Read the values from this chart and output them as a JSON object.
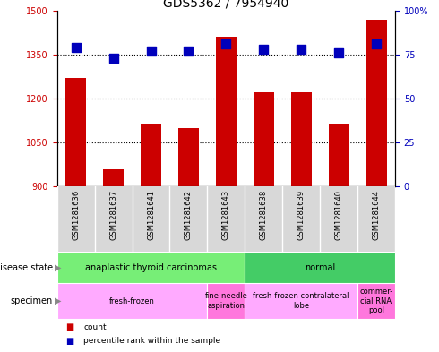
{
  "title": "GDS5362 / 7954940",
  "samples": [
    "GSM1281636",
    "GSM1281637",
    "GSM1281641",
    "GSM1281642",
    "GSM1281643",
    "GSM1281638",
    "GSM1281639",
    "GSM1281640",
    "GSM1281644"
  ],
  "counts": [
    1270,
    960,
    1115,
    1100,
    1410,
    1220,
    1220,
    1115,
    1470
  ],
  "percentiles": [
    79,
    73,
    77,
    77,
    81,
    78,
    78,
    76,
    81
  ],
  "ylim_left": [
    900,
    1500
  ],
  "ylim_right": [
    0,
    100
  ],
  "yticks_left": [
    900,
    1050,
    1200,
    1350,
    1500
  ],
  "yticks_right": [
    0,
    25,
    50,
    75,
    100
  ],
  "bar_color": "#cc0000",
  "dot_color": "#0000bb",
  "disease_state_groups": [
    {
      "label": "anaplastic thyroid carcinomas",
      "start": 0,
      "end": 5,
      "color": "#77ee77"
    },
    {
      "label": "normal",
      "start": 5,
      "end": 9,
      "color": "#44cc66"
    }
  ],
  "specimen_groups": [
    {
      "label": "fresh-frozen",
      "start": 0,
      "end": 4,
      "color": "#ffaaff"
    },
    {
      "label": "fine-needle\naspiration",
      "start": 4,
      "end": 5,
      "color": "#ff88ee"
    },
    {
      "label": "fresh-frozen contralateral\nlobe",
      "start": 5,
      "end": 8,
      "color": "#ffaaff"
    },
    {
      "label": "commer-\ncial RNA\npool",
      "start": 8,
      "end": 9,
      "color": "#ff88ee"
    }
  ],
  "legend_count_color": "#cc0000",
  "legend_dot_color": "#0000bb",
  "bar_width": 0.55,
  "dot_size": 50,
  "gray_bg": "#d8d8d8",
  "label_fontsize": 7,
  "tick_fontsize": 7,
  "gsm_fontsize": 6,
  "title_fontsize": 10
}
